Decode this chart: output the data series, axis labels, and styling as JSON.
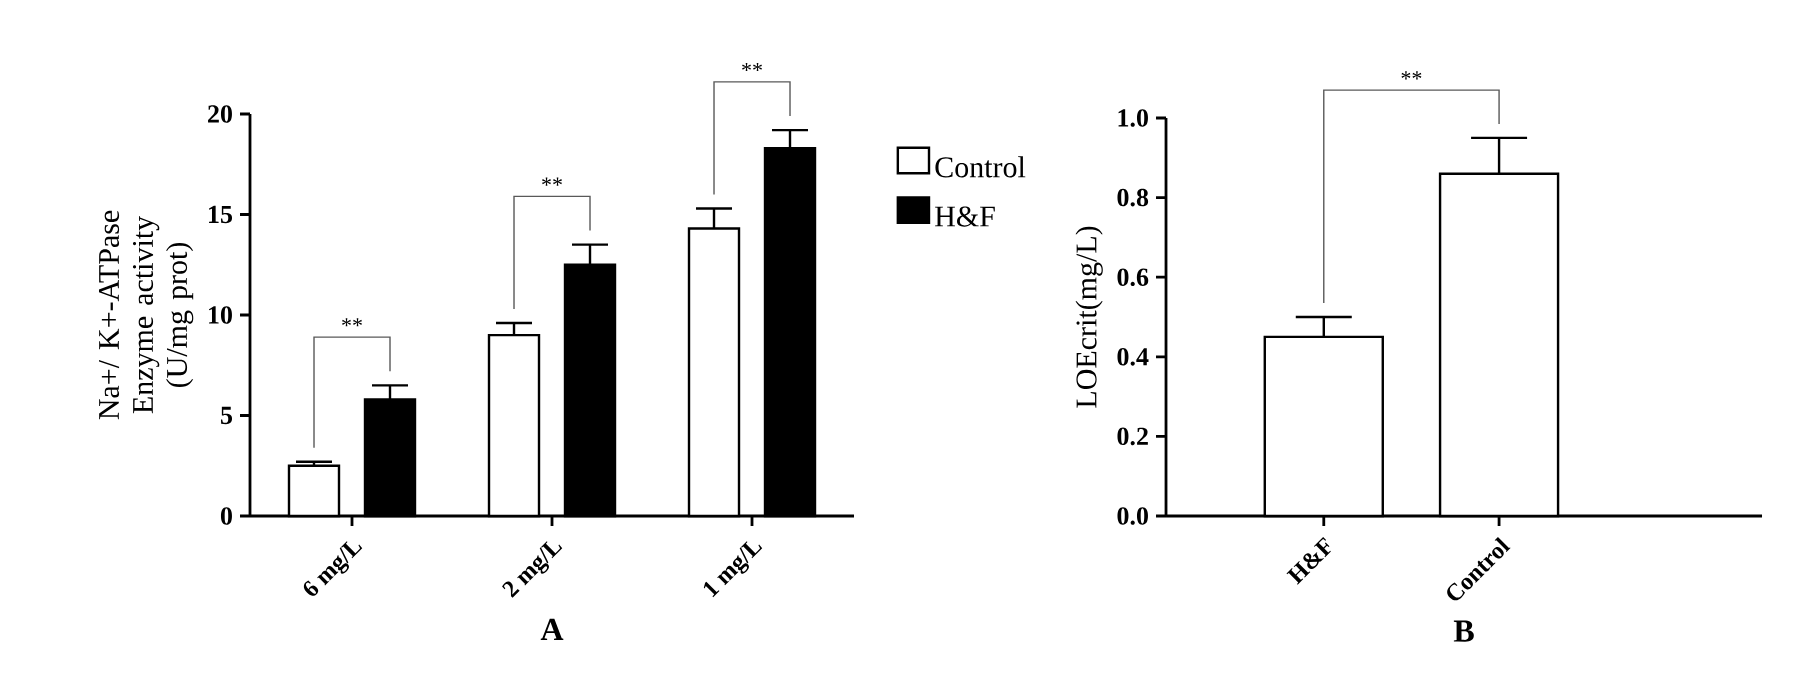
{
  "chart_data": [
    {
      "type": "bar",
      "categories": [
        "6 mg/L",
        "2 mg/L",
        "1 mg/L"
      ],
      "xlabel": "A",
      "ylabel": "Na+/ K+-ATPase Enzyme activity (U/mg prot)",
      "series": [
        {
          "name": "Control",
          "color": "#ffffff",
          "values": [
            2.5,
            9.0,
            14.3
          ],
          "errors": [
            0.2,
            0.6,
            1.0
          ]
        },
        {
          "name": "H&F",
          "color": "#000000",
          "values": [
            5.8,
            12.5,
            18.3
          ],
          "errors": [
            0.7,
            1.0,
            0.9
          ]
        }
      ],
      "ylim": [
        0,
        20
      ],
      "yticks": [
        0,
        5,
        10,
        15,
        20
      ],
      "legend": "right",
      "annotations": [
        "**",
        "**",
        "**"
      ]
    },
    {
      "type": "bar",
      "categories": [
        "H&F",
        "Control"
      ],
      "xlabel": "B",
      "ylabel": "LOEcrit(mg/L)",
      "values": [
        0.45,
        0.86
      ],
      "errors": [
        0.05,
        0.09
      ],
      "color": "#ffffff",
      "ylim": [
        0,
        1.0
      ],
      "yticks": [
        {
          "value": 0,
          "label": "0.0"
        },
        {
          "value": 0.2,
          "label": "0.2"
        },
        {
          "value": 0.4,
          "label": "0.4"
        },
        {
          "value": 0.6,
          "label": "0.6"
        },
        {
          "value": 0.8,
          "label": "0.8"
        },
        {
          "value": 1.0,
          "label": "1.0"
        }
      ],
      "annotations": [
        "**"
      ]
    }
  ]
}
